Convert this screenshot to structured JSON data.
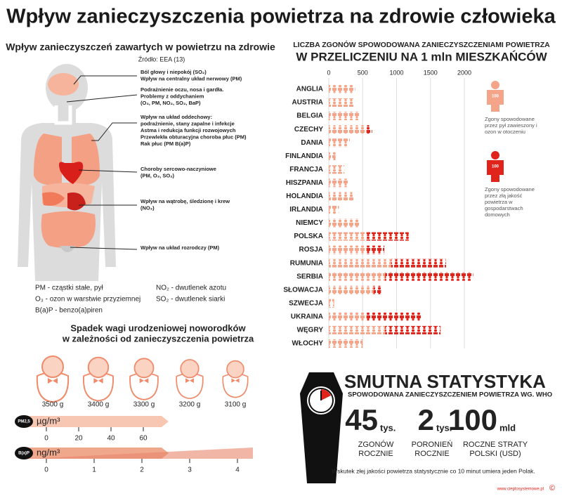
{
  "title": "Wpływ zanieczyszczenia powietrza na zdrowie człowieka",
  "body_panel": {
    "title": "Wpływ zanieczyszczeń zawartych w powietrzu na zdrowie",
    "source": "Źródło: EEA (13)",
    "effects": [
      [
        "Ból głowy i niepokój (SO₂)",
        "Wpływ na centralny układ nerwowy (PM)"
      ],
      [
        "Podrażnienie oczu, nosa i gardła.",
        "Problemy z oddychaniem",
        "(O₃, PM, NO₂, SO₂, BaP)"
      ],
      [
        "Wpływ na układ oddechowy:",
        "podrażnienie, stany zapalne i infekcje",
        "Astma i redukcja funkcji rozwojowych",
        "Przewlekła obturacyjna choroba płuc (PM)",
        "Rak płuc (PM B(a)P)"
      ],
      [
        "Choroby sercowo-naczyniowe",
        "(PM, O₃, SO₂)"
      ],
      [
        "Wpływ na wątrobę, śledzionę i krew",
        "(NO₂)"
      ],
      [
        "Wpływ na układ rozrodczy (PM)"
      ]
    ],
    "abbreviations": [
      "PM - cząstki stałe, pył",
      "O₃ - ozon w warstwie przyziemnej",
      "B(a)P - benzo(a)piren",
      "NO₂ - dwutlenek azotu",
      "SO₂ - dwutlenek siarki"
    ]
  },
  "birth_weight": {
    "title": [
      "Spadek wagi urodzeniowej noworodków",
      "w zależności od zanieczyszczenia powietrza"
    ],
    "weights": [
      "3500 g",
      "3400 g",
      "3300 g",
      "3200 g",
      "3100 g"
    ],
    "pm_scale": {
      "badge": "PM2,5",
      "unit": "µg/m³",
      "ticks": [
        0,
        20,
        40,
        60
      ]
    },
    "bap_scale": {
      "badge": "B(a)P",
      "unit": "ng/m³",
      "ticks": [
        0,
        1,
        2,
        3,
        4
      ]
    }
  },
  "chart_data": {
    "type": "bar",
    "orientation": "horizontal",
    "stacked": true,
    "title": "LICZBA ZGONÓW SPOWODOWANA ZANIECZYSZCZENIAMI POWIETRZA",
    "subtitle": "W PRZELICZENIU NA 1 mln MIESZKAŃCÓW",
    "categories": [
      "ANGLIA",
      "AUSTRIA",
      "BELGIA",
      "CZECHY",
      "DANIA",
      "FINLANDIA",
      "FRANCJA",
      "HISZPANIA",
      "HOLANDIA",
      "IRLANDIA",
      "NIEMCY",
      "POLSKA",
      "ROSJA",
      "RUMUNIA",
      "SERBIA",
      "SŁOWACJA",
      "SZWECJA",
      "UKRAINA",
      "WĘGRY",
      "WŁOCHY"
    ],
    "series": [
      {
        "name": "Zgony spowodowane przez pył zawieszony i ozon w otoczeniu",
        "icon_label": "100",
        "color": "#f4a488",
        "values": [
          390,
          380,
          460,
          560,
          310,
          100,
          230,
          280,
          380,
          150,
          460,
          560,
          560,
          920,
          830,
          660,
          80,
          560,
          830,
          500
        ]
      },
      {
        "name": "Zgony spowodowane przez złą jakość powietrza w gospodarstwach domowych",
        "icon_label": "100",
        "color": "#e0231b",
        "values": [
          0,
          0,
          0,
          80,
          0,
          0,
          0,
          0,
          0,
          0,
          0,
          620,
          260,
          810,
          1300,
          110,
          0,
          810,
          820,
          0
        ]
      }
    ],
    "xlim": [
      0,
      2150
    ],
    "xticks": [
      0,
      500,
      1000,
      1500,
      2000
    ],
    "grid": true
  },
  "stats": {
    "title": "SMUTNA STATYSTYKA",
    "subtitle": "SPOWODOWANA ZANIECZYSZCZENIEM POWIETRZA WG. WHO",
    "items": [
      {
        "value": 45,
        "unit": "tys.",
        "label": [
          "ZGONÓW",
          "ROCZNIE"
        ]
      },
      {
        "value": 2,
        "unit": "tys.",
        "label": [
          "PORONIEŃ",
          "ROCZNIE"
        ]
      },
      {
        "value": 100,
        "unit": "mld",
        "label": [
          "ROCZNE STRATY",
          "POLSKI (USD)"
        ]
      }
    ],
    "note": "Wskutek złej jakości powietrza statystycznie co 10 minut umiera jeden Polak."
  },
  "footer": {
    "site": "www.cieplosystemowe.pl",
    "copyright": "©"
  }
}
